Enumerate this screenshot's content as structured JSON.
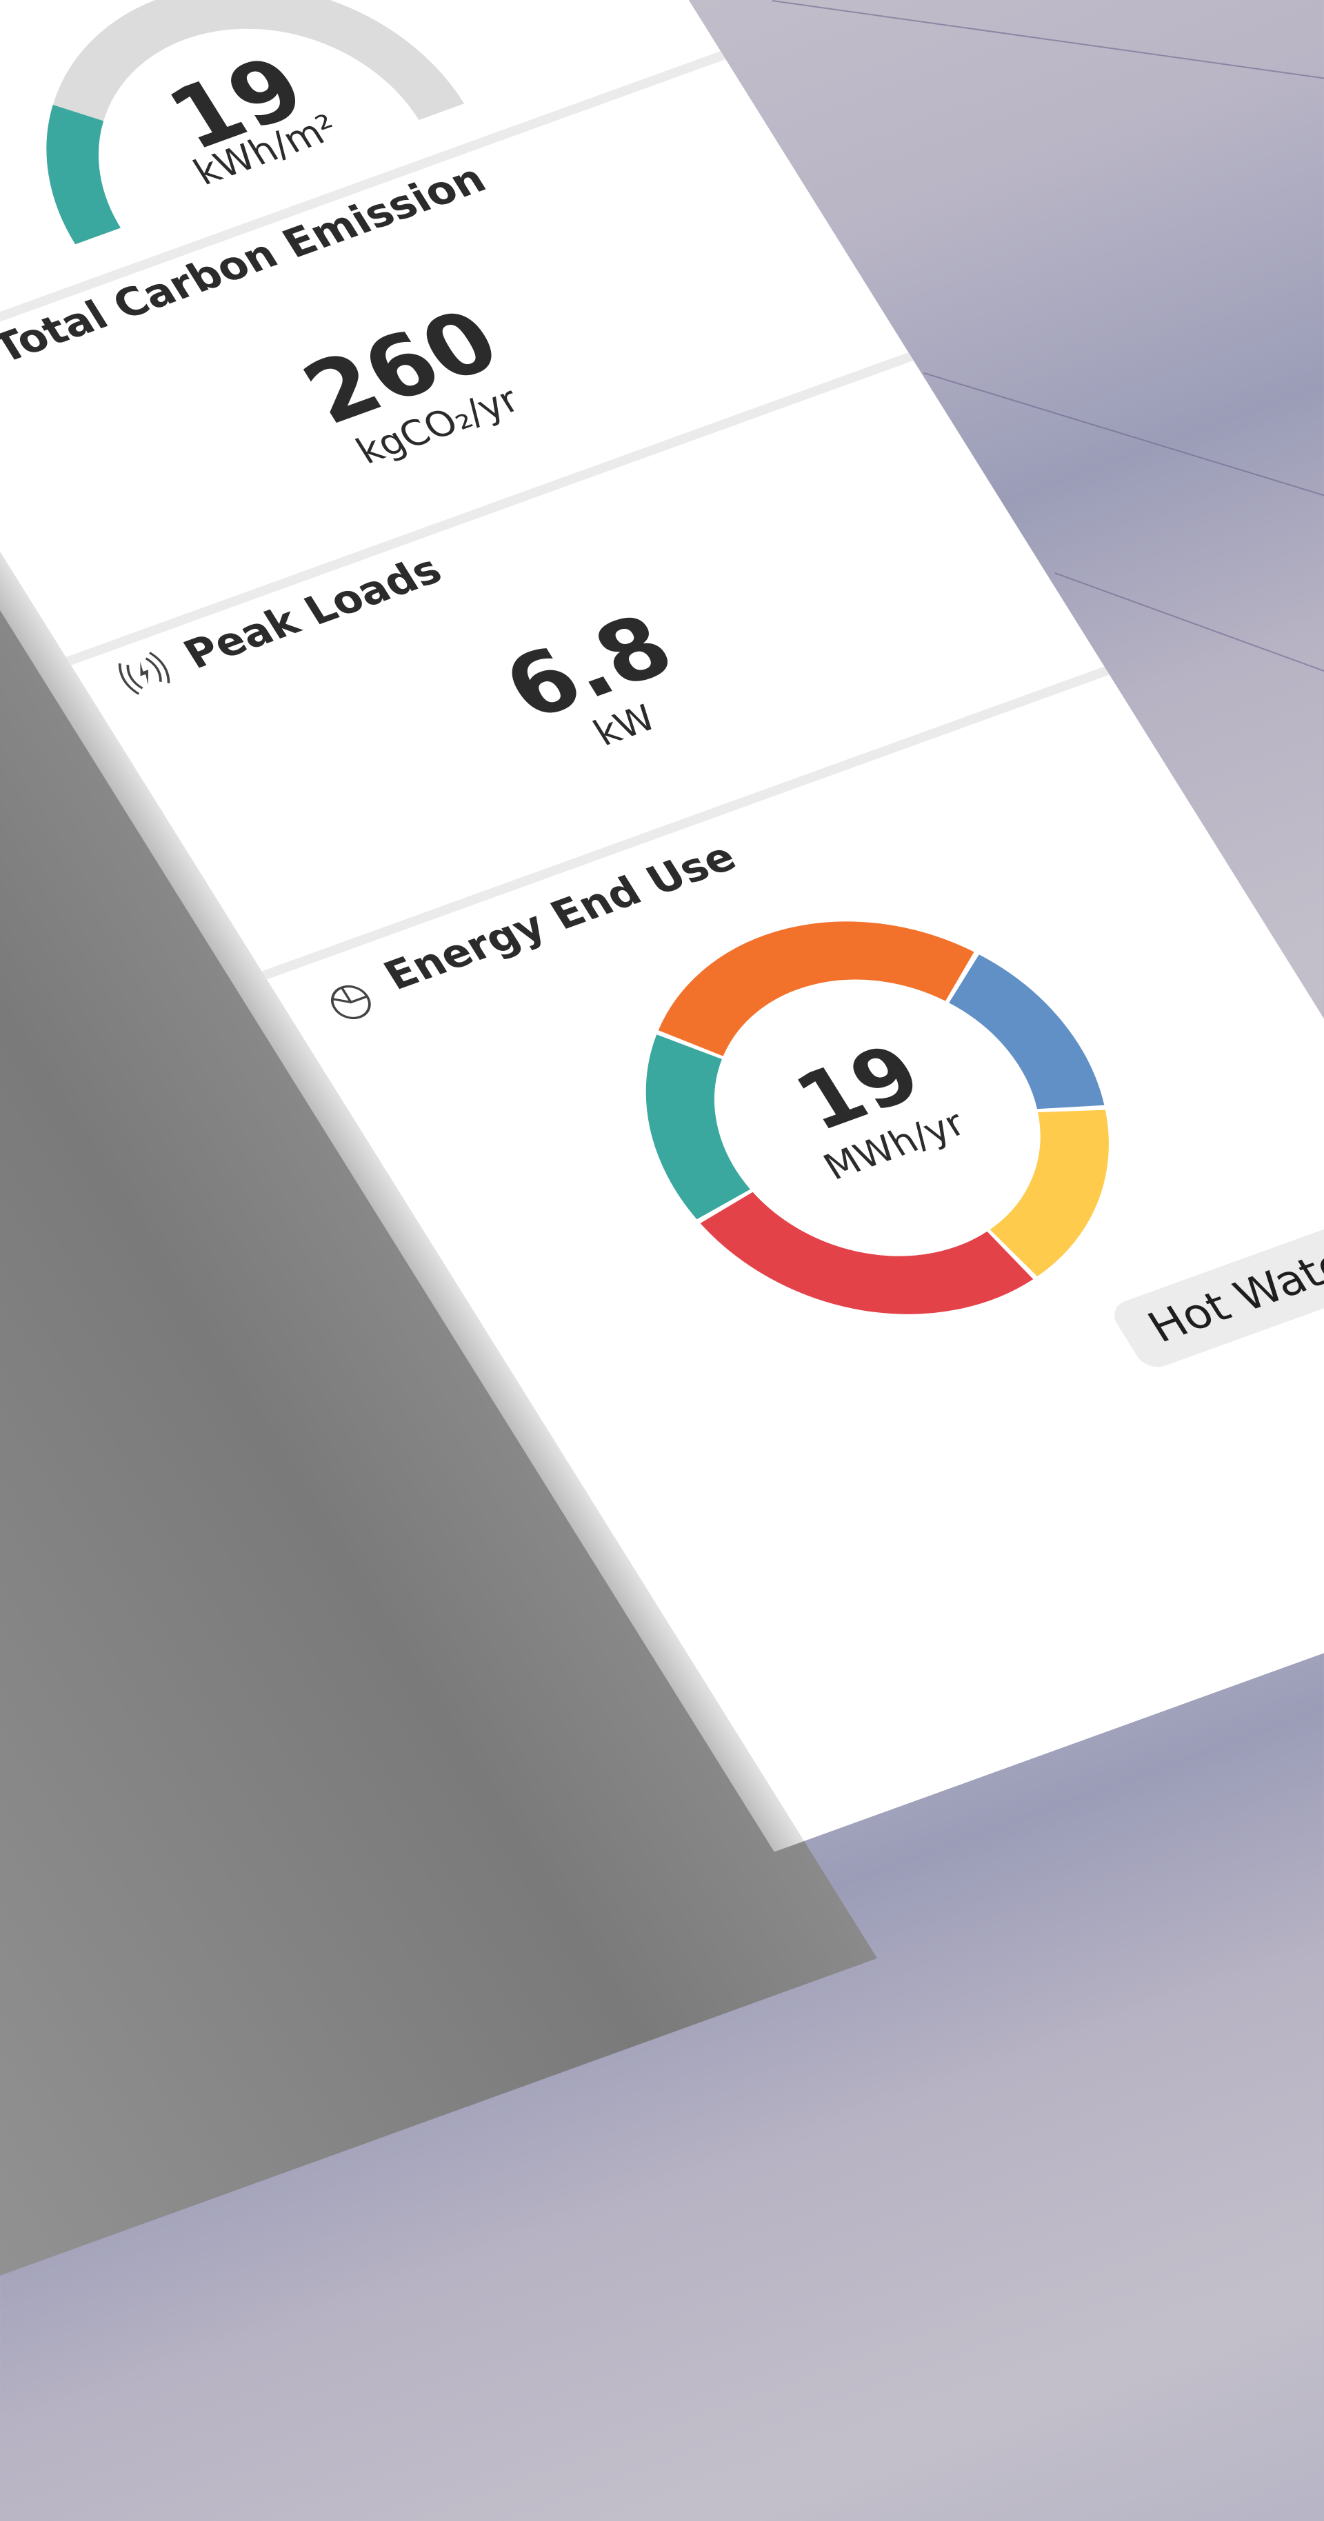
{
  "colors": {
    "teal": "#3aa89e",
    "orange": "#f2722b",
    "blue": "#6190c6",
    "yellow": "#fecb4d",
    "red": "#e44249",
    "gauge_track": "#dcdcdc",
    "text": "#2b2b2b"
  },
  "energy_intensity": {
    "value": "19",
    "unit": "kWh/m²",
    "gauge_fill_fraction": 0.24
  },
  "carbon": {
    "title": "Total Carbon Emission",
    "value": "260",
    "unit": "kgCO₂/yr"
  },
  "peak_loads": {
    "title": "Peak Loads",
    "icon": "electric-signal-icon",
    "value": "6.8",
    "unit": "kW"
  },
  "energy_end_use": {
    "title": "Energy End Use",
    "icon": "pie-chart-icon",
    "total_value": "19",
    "total_unit": "MWh/yr",
    "legend": [
      "Hot Water"
    ]
  },
  "chart_data": {
    "type": "pie",
    "style": "donut",
    "values": [
      16,
      27,
      15,
      16,
      26
    ],
    "colors": [
      "#3aa89e",
      "#f2722b",
      "#6190c6",
      "#fecb4d",
      "#e44249"
    ]
  }
}
